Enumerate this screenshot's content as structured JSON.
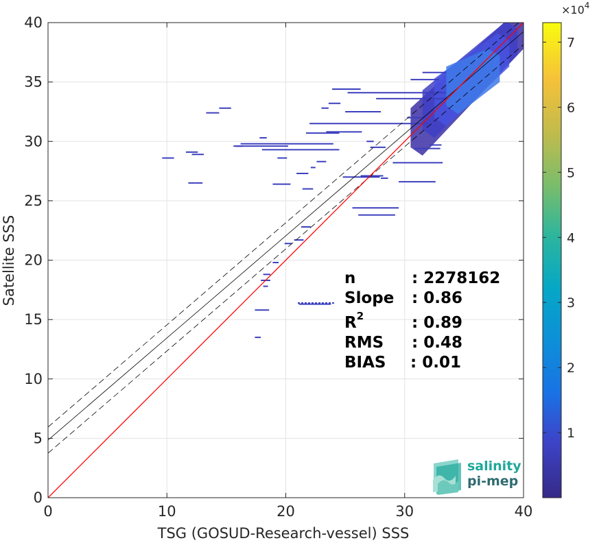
{
  "chart_data": {
    "type": "scatter",
    "subtype": "density-scatter",
    "xlabel": "TSG (GOSUD-Research-vessel) SSS",
    "ylabel": "Satellite SSS",
    "xlim": [
      0,
      40
    ],
    "ylim": [
      0,
      40
    ],
    "xticks": [
      0,
      10,
      20,
      30,
      40
    ],
    "yticks": [
      0,
      5,
      10,
      15,
      20,
      25,
      30,
      35,
      40
    ],
    "grid": true,
    "colormap": "parula",
    "colorbar": {
      "min": 0,
      "max": 73000,
      "ticks": [
        1,
        2,
        3,
        4,
        5,
        6,
        7
      ],
      "exponent_label": "×10",
      "exponent_power": "4"
    },
    "reference_lines": {
      "identity": {
        "slope": 1,
        "intercept": 0,
        "color": "#ff0000"
      },
      "regression": {
        "slope": 0.86,
        "intercept": 4.85,
        "color": "#000000"
      },
      "confidence": {
        "offset": 1.1,
        "style": "dashed",
        "color": "#000000"
      }
    },
    "stats": [
      {
        "label": "n",
        "value": ": 2278162"
      },
      {
        "label": "Slope",
        "value": ": 0.86"
      },
      {
        "label": "R",
        "sup": "2",
        "value": ": 0.89"
      },
      {
        "label": "RMS",
        "value": ": 0.48"
      },
      {
        "label": "BIAS",
        "value": ": 0.01"
      }
    ],
    "segments": [
      [
        9.6,
        10.6,
        28.6
      ],
      [
        11.6,
        12.6,
        29.1
      ],
      [
        12.1,
        13.1,
        28.9
      ],
      [
        11.8,
        12.4,
        26.5
      ],
      [
        12.4,
        13.0,
        26.5
      ],
      [
        13.3,
        14.4,
        32.4
      ],
      [
        14.4,
        15.4,
        32.8
      ],
      [
        15.8,
        16.4,
        29.6
      ],
      [
        15.6,
        20.2,
        29.6
      ],
      [
        16.2,
        24.0,
        29.8
      ],
      [
        18.0,
        24.5,
        29.3
      ],
      [
        17.8,
        18.4,
        30.3
      ],
      [
        19.3,
        20.1,
        28.6
      ],
      [
        18.9,
        20.4,
        26.4
      ],
      [
        20.9,
        21.9,
        27.3
      ],
      [
        21.4,
        22.3,
        26.0
      ],
      [
        22.1,
        22.5,
        27.8
      ],
      [
        22.6,
        23.4,
        28.3
      ],
      [
        21.7,
        24.5,
        30.7
      ],
      [
        23.4,
        26.4,
        30.8
      ],
      [
        23.0,
        23.6,
        32.8
      ],
      [
        23.6,
        24.6,
        33.2
      ],
      [
        22.0,
        32.0,
        31.5
      ],
      [
        25.0,
        28.0,
        32.5
      ],
      [
        26.8,
        27.4,
        30.0
      ],
      [
        27.1,
        28.4,
        29.5
      ],
      [
        26.3,
        28.2,
        27.1
      ],
      [
        28.0,
        28.6,
        26.9
      ],
      [
        29.5,
        32.6,
        26.6
      ],
      [
        30.8,
        33.0,
        29.4
      ],
      [
        32.1,
        33.1,
        29.7
      ],
      [
        21.3,
        22.1,
        22.8
      ],
      [
        20.7,
        21.5,
        21.7
      ],
      [
        19.9,
        20.5,
        21.4
      ],
      [
        18.9,
        19.4,
        19.8
      ],
      [
        18.1,
        18.7,
        18.8
      ],
      [
        17.9,
        18.7,
        18.3
      ],
      [
        18.1,
        18.5,
        17.8
      ],
      [
        17.4,
        18.6,
        15.8
      ],
      [
        17.4,
        17.9,
        13.5
      ],
      [
        21.1,
        23.8,
        16.3
      ],
      [
        30.2,
        31.6,
        32.0
      ],
      [
        23.9,
        26.3,
        34.4
      ],
      [
        25.2,
        33.5,
        34.1
      ],
      [
        27.6,
        33.6,
        33.6
      ],
      [
        30.5,
        32.9,
        35.2
      ],
      [
        31.5,
        33.5,
        35.8
      ],
      [
        24.8,
        27.9,
        27.0
      ],
      [
        29.0,
        33.2,
        28.2
      ],
      [
        25.6,
        29.5,
        24.4
      ],
      [
        26.1,
        29.2,
        23.8
      ]
    ]
  },
  "brand": {
    "line1": "salinity",
    "line2": "pi-mep",
    "color": "#1fa89a"
  }
}
